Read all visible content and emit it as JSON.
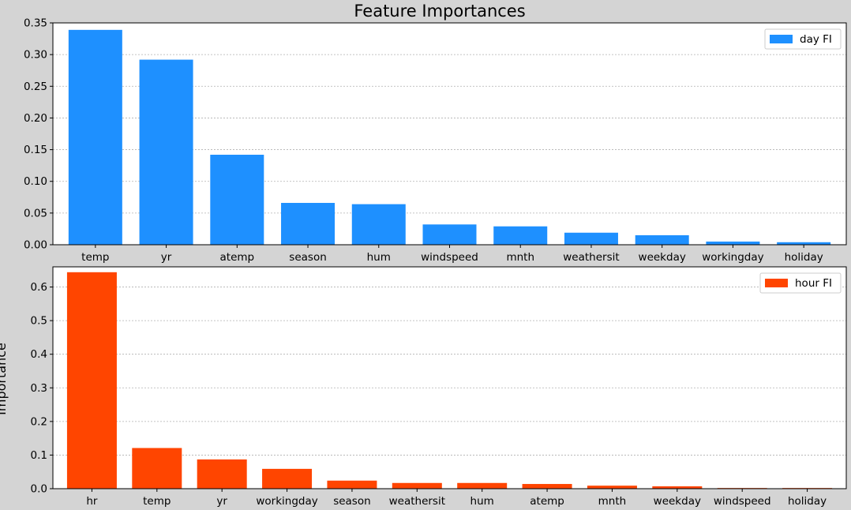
{
  "figure": {
    "title": "Feature Importances",
    "ylabel": "Importance"
  },
  "chart_data": [
    {
      "type": "bar",
      "categories": [
        "temp",
        "yr",
        "atemp",
        "season",
        "hum",
        "windspeed",
        "mnth",
        "weathersit",
        "weekday",
        "workingday",
        "holiday"
      ],
      "series": [
        {
          "name": "day FI",
          "color": "#1e90ff",
          "values": [
            0.339,
            0.292,
            0.142,
            0.066,
            0.064,
            0.032,
            0.029,
            0.019,
            0.015,
            0.005,
            0.004
          ]
        }
      ],
      "ylim": [
        0,
        0.35
      ],
      "yticks": [
        0.0,
        0.05,
        0.1,
        0.15,
        0.2,
        0.25,
        0.3,
        0.35
      ],
      "ytick_labels": [
        "0.00",
        "0.05",
        "0.10",
        "0.15",
        "0.20",
        "0.25",
        "0.30",
        "0.35"
      ],
      "grid": true,
      "legend": "top-right"
    },
    {
      "type": "bar",
      "categories": [
        "hr",
        "temp",
        "yr",
        "workingday",
        "season",
        "weathersit",
        "hum",
        "atemp",
        "mnth",
        "weekday",
        "windspeed",
        "holiday"
      ],
      "series": [
        {
          "name": "hour FI",
          "color": "#ff4500",
          "values": [
            0.644,
            0.121,
            0.087,
            0.059,
            0.024,
            0.017,
            0.017,
            0.014,
            0.009,
            0.007,
            0.002,
            0.002
          ]
        }
      ],
      "ylim": [
        0,
        0.66
      ],
      "yticks": [
        0.0,
        0.1,
        0.2,
        0.3,
        0.4,
        0.5,
        0.6
      ],
      "ytick_labels": [
        "0.0",
        "0.1",
        "0.2",
        "0.3",
        "0.4",
        "0.5",
        "0.6"
      ],
      "grid": true,
      "legend": "top-right"
    }
  ]
}
